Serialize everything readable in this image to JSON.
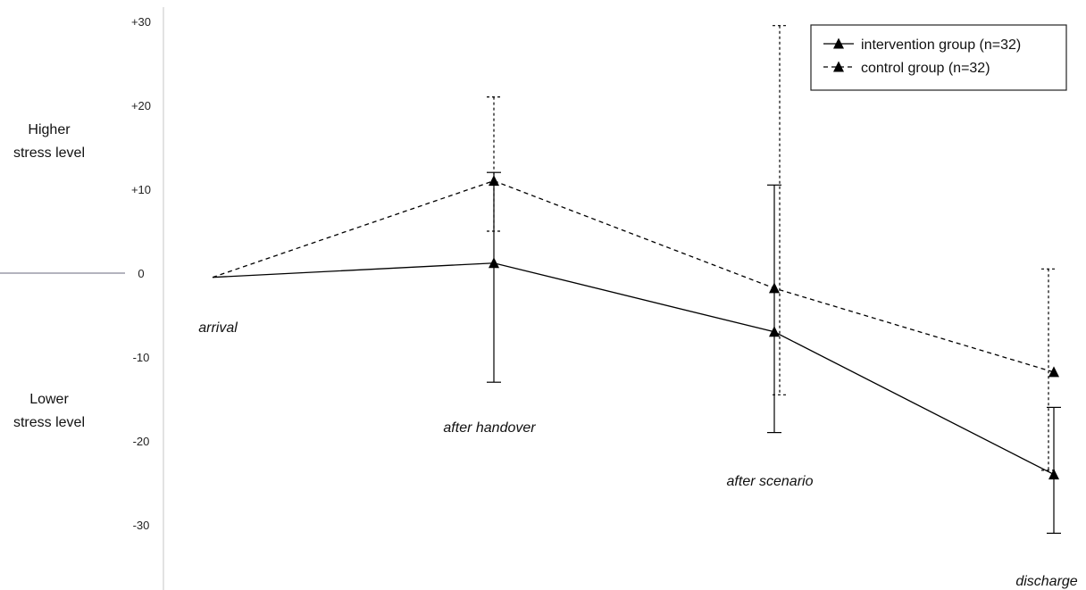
{
  "chart_data": {
    "type": "line",
    "title": "",
    "xlabel": "",
    "ylabel": "",
    "categories": [
      "arrival",
      "after handover",
      "after scenario",
      "discharge"
    ],
    "y_tick_labels": [
      "+30",
      "+20",
      "+10",
      "0",
      "-10",
      "-20",
      "-30"
    ],
    "y_ticks": [
      30,
      20,
      10,
      0,
      -10,
      -20,
      -30
    ],
    "ylim": [
      -37,
      31
    ],
    "side_labels": {
      "higher": [
        "Higher",
        "stress level"
      ],
      "lower": [
        "Lower",
        "stress level"
      ]
    },
    "series": [
      {
        "name": "intervention group (n=32)",
        "line_style": "solid",
        "color": "#000000",
        "values": [
          -0.5,
          1.2,
          -7,
          -24
        ],
        "error_upper": [
          null,
          12,
          10.5,
          -16
        ],
        "error_lower": [
          null,
          -13,
          -19,
          -31
        ]
      },
      {
        "name": "control group (n=32)",
        "line_style": "dashed",
        "color": "#000000",
        "values": [
          -0.5,
          11,
          -1.8,
          -11.8
        ],
        "error_upper": [
          null,
          21,
          29.5,
          0.5
        ],
        "error_lower": [
          null,
          5,
          -14.5,
          -23.5
        ]
      }
    ],
    "legend_position": "top-right",
    "grid": false,
    "marker": "triangle"
  }
}
